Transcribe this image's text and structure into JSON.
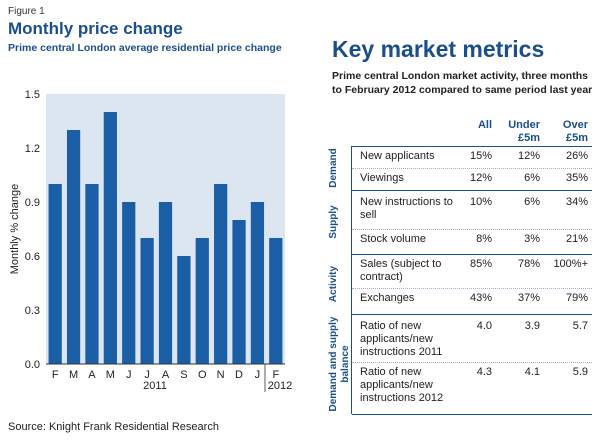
{
  "figure_label": "Figure 1",
  "colors": {
    "accent": "#1a4f8b",
    "bar": "#1a5fa6",
    "chart_bg": "#dbe6f1"
  },
  "chart_data": {
    "type": "bar",
    "title": "Monthly price change",
    "subtitle": "Prime central London average residential price change",
    "ylabel": "Monthly % change",
    "xlabel": "",
    "categories": [
      "F",
      "M",
      "A",
      "M",
      "J",
      "J",
      "A",
      "S",
      "O",
      "N",
      "D",
      "J",
      "F"
    ],
    "values": [
      1.0,
      1.3,
      1.0,
      1.4,
      0.9,
      0.7,
      0.9,
      0.6,
      0.7,
      1.0,
      0.8,
      0.9,
      0.7
    ],
    "year_labels": [
      "2011",
      "2012"
    ],
    "ylim": [
      0,
      1.5
    ],
    "yticks": [
      "0.0",
      "0.3",
      "0.6",
      "0.9",
      "1.2",
      "1.5"
    ],
    "grid": false
  },
  "source": "Source: Knight Frank Residential Research",
  "metrics": {
    "title": "Key market metrics",
    "subtitle": "Prime central London market activity, three months to February 2012 compared to same period last year",
    "columns": [
      "All",
      "Under\n£5m",
      "Over\n£5m"
    ],
    "groups": [
      {
        "label": "Demand",
        "rows": [
          {
            "label": "New applicants",
            "all": "15%",
            "under": "12%",
            "over": "26%"
          },
          {
            "label": "Viewings",
            "all": "12%",
            "under": "6%",
            "over": "35%"
          }
        ]
      },
      {
        "label": "Supply",
        "rows": [
          {
            "label": "New instructions to sell",
            "all": "10%",
            "under": "6%",
            "over": "34%"
          },
          {
            "label": "Stock volume",
            "all": "8%",
            "under": "3%",
            "over": "21%"
          }
        ]
      },
      {
        "label": "Activity",
        "rows": [
          {
            "label": "Sales (subject to contract)",
            "all": "85%",
            "under": "78%",
            "over": "100%+"
          },
          {
            "label": "Exchanges",
            "all": "43%",
            "under": "37%",
            "over": "79%"
          }
        ]
      },
      {
        "label": "Demand and supply balance",
        "rows": [
          {
            "label": "Ratio of new applicants/new instructions 2011",
            "all": "4.0",
            "under": "3.9",
            "over": "5.7"
          },
          {
            "label": "Ratio of new applicants/new instructions 2012",
            "all": "4.3",
            "under": "4.1",
            "over": "5.9"
          }
        ]
      }
    ]
  }
}
